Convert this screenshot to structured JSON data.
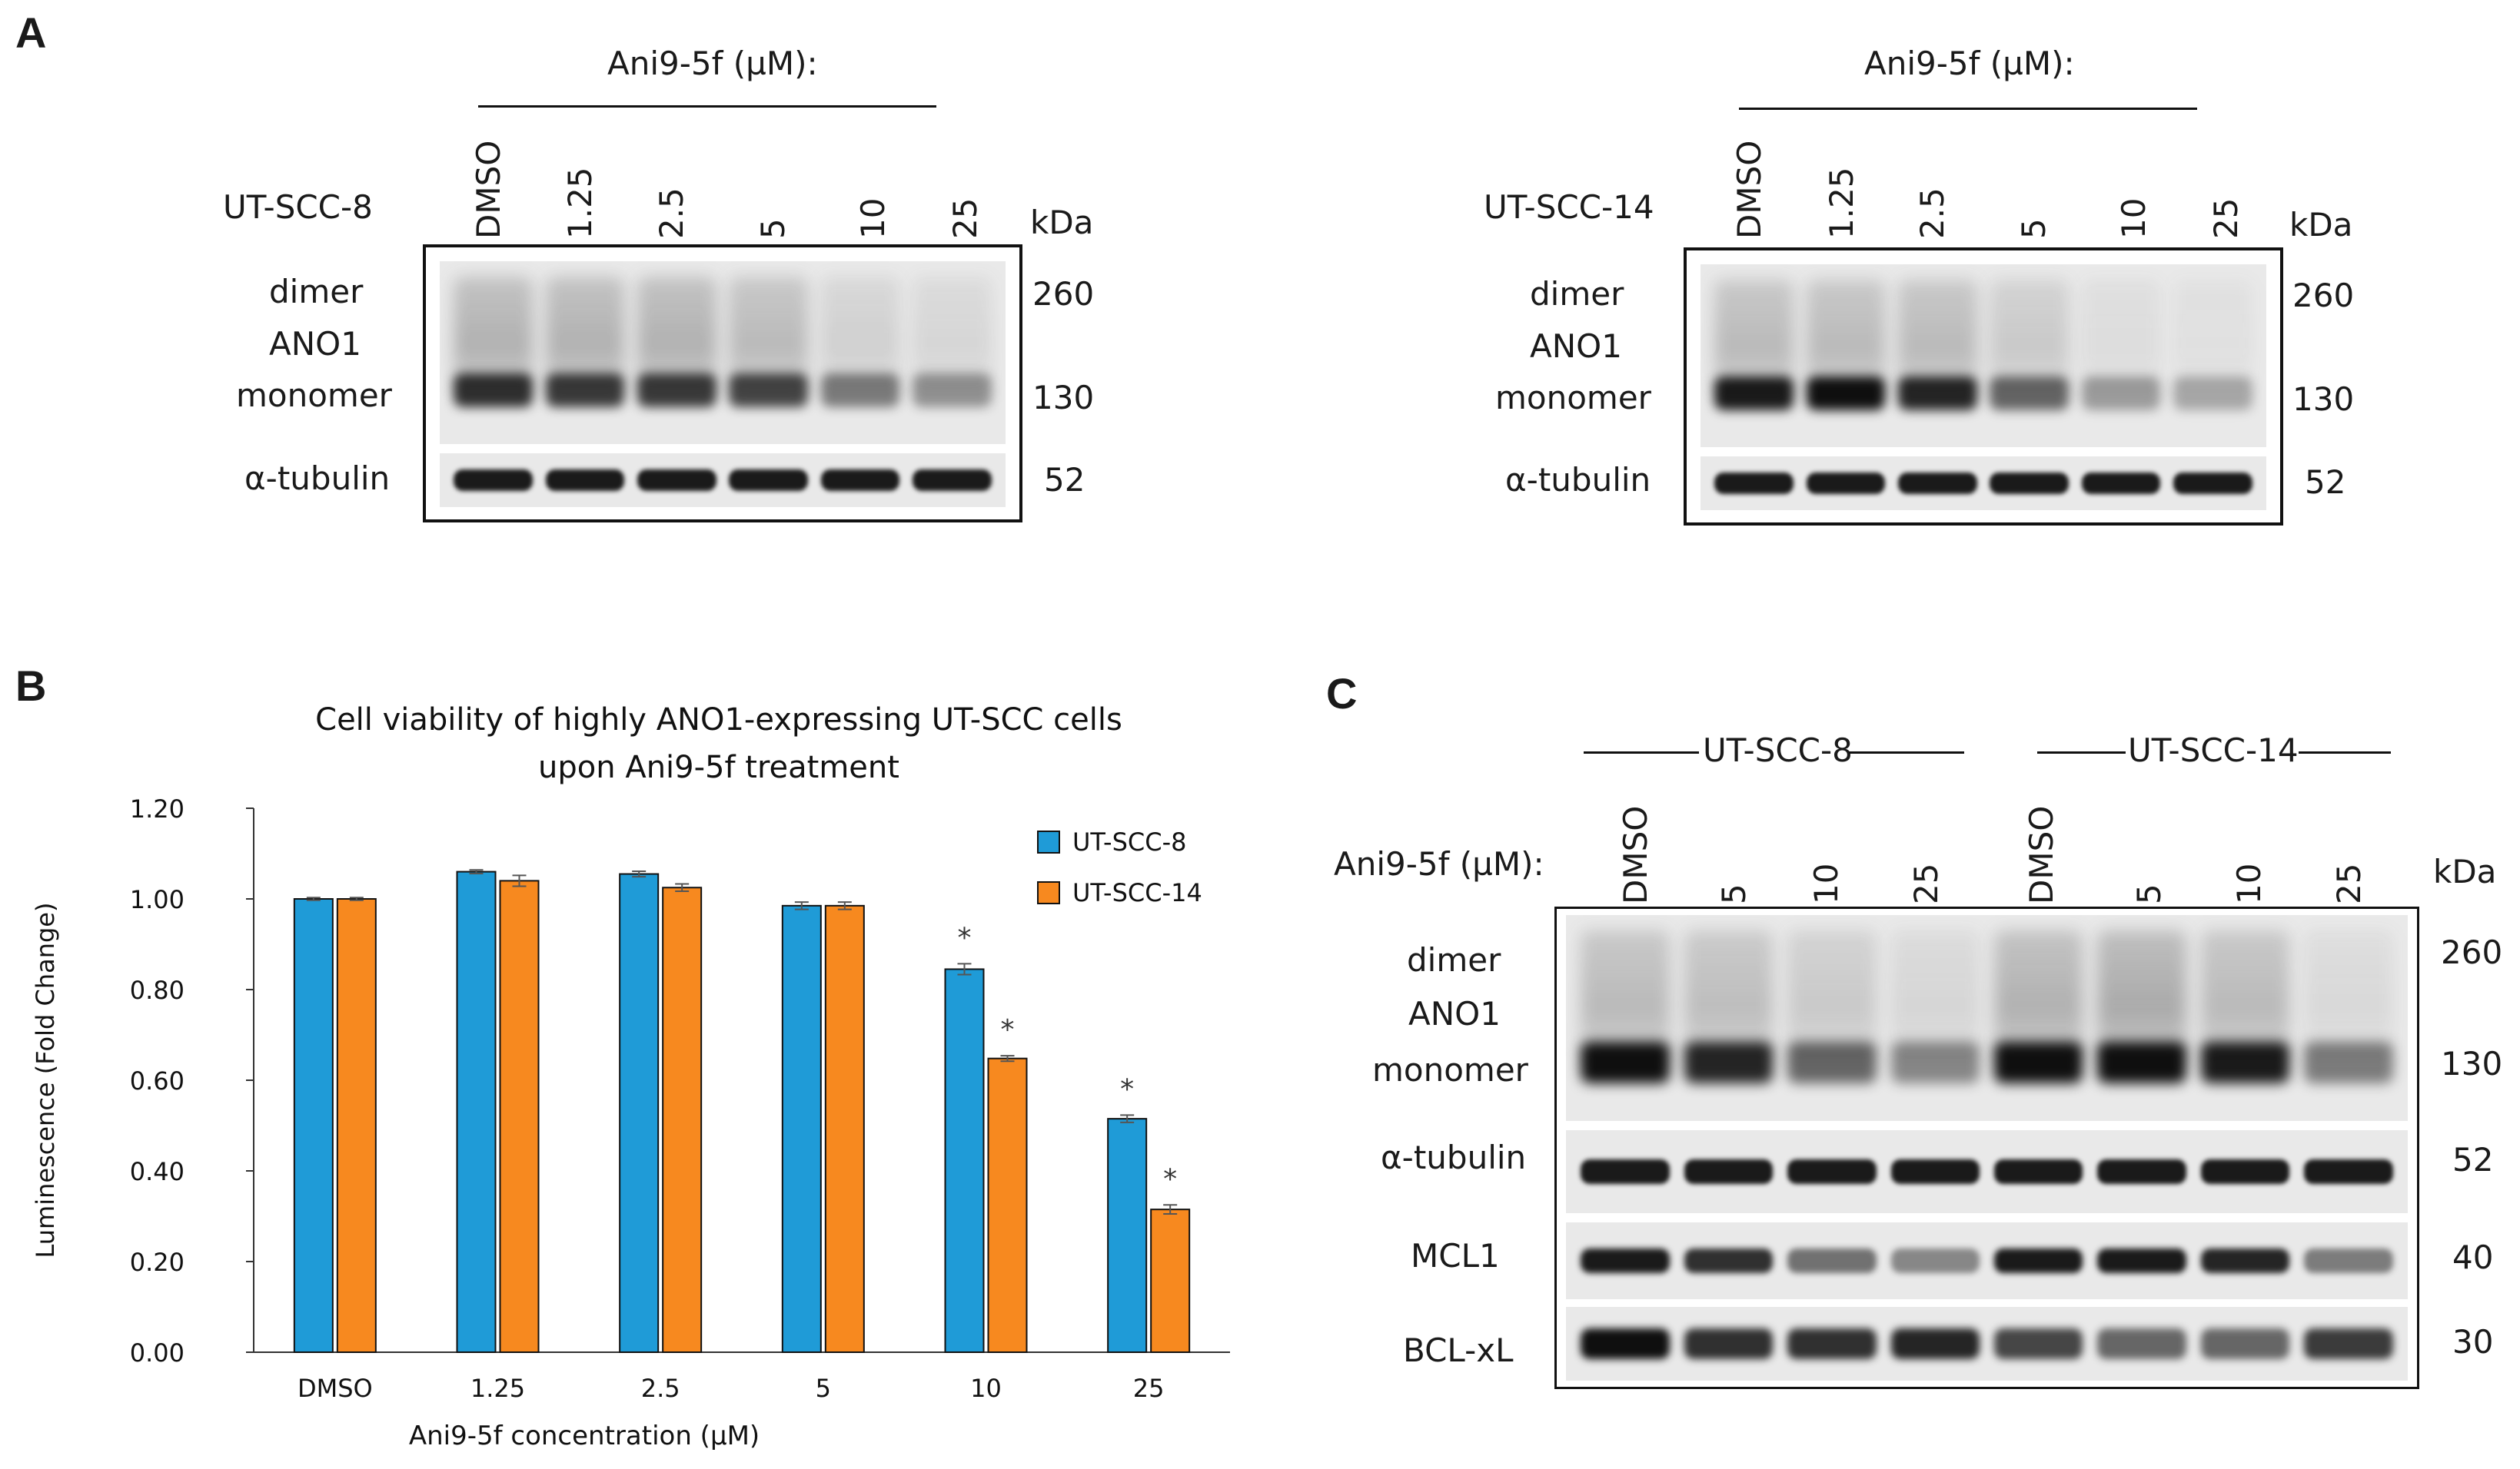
{
  "panelA": {
    "letter": "A",
    "blot1": {
      "treatment_label": "Ani9-5f (µM):",
      "cell_line": "UT-SCC-8",
      "lanes": [
        "DMSO",
        "1.25",
        "2.5",
        "5",
        "10",
        "25"
      ],
      "kda": "kDa",
      "rows": [
        "dimer",
        "ANO1",
        "monomer",
        "α-tubulin"
      ],
      "markers": [
        "260",
        "130",
        "52"
      ],
      "ano1_monomer_intensity": [
        0.85,
        0.8,
        0.8,
        0.75,
        0.5,
        0.4
      ],
      "ano1_dimer_intensity": [
        0.35,
        0.35,
        0.35,
        0.3,
        0.15,
        0.12
      ],
      "tubulin_intensity": [
        0.95,
        0.95,
        0.95,
        0.95,
        0.95,
        0.95
      ]
    },
    "blot2": {
      "treatment_label": "Ani9-5f (µM):",
      "cell_line": "UT-SCC-14",
      "lanes": [
        "DMSO",
        "1.25",
        "2.5",
        "5",
        "10",
        "25"
      ],
      "kda": "kDa",
      "rows": [
        "dimer",
        "ANO1",
        "monomer",
        "α-tubulin"
      ],
      "markers": [
        "260",
        "130",
        "52"
      ],
      "ano1_monomer_intensity": [
        0.95,
        1.0,
        0.9,
        0.6,
        0.35,
        0.3
      ],
      "ano1_dimer_intensity": [
        0.3,
        0.3,
        0.3,
        0.2,
        0.08,
        0.06
      ],
      "tubulin_intensity": [
        0.95,
        0.95,
        0.95,
        0.95,
        0.95,
        0.95
      ]
    }
  },
  "panelB": {
    "letter": "B",
    "chart_data": {
      "type": "bar",
      "title": "Cell viability of highly ANO1-expressing UT-SCC cells upon Ani9-5f treatment",
      "title_lines": [
        "Cell viability of highly ANO1-expressing UT-SCC cells",
        "upon Ani9-5f treatment"
      ],
      "xlabel": "Ani9-5f concentration (µM)",
      "ylabel": "Luminescence (Fold Change)",
      "categories": [
        "DMSO",
        "1.25",
        "2.5",
        "5",
        "10",
        "25"
      ],
      "yticks": [
        "0.00",
        "0.20",
        "0.40",
        "0.60",
        "0.80",
        "1.00",
        "1.20"
      ],
      "ylim": [
        0,
        1.2
      ],
      "legend_position": "top-right",
      "series": [
        {
          "name": "UT-SCC-8",
          "color": "#1f9bd7",
          "values": [
            1.0,
            1.06,
            1.055,
            0.985,
            0.845,
            0.515
          ],
          "errors": [
            0.003,
            0.004,
            0.006,
            0.008,
            0.012,
            0.008
          ]
        },
        {
          "name": "UT-SCC-14",
          "color": "#f7891f",
          "values": [
            1.0,
            1.04,
            1.025,
            0.985,
            0.648,
            0.315
          ],
          "errors": [
            0.003,
            0.012,
            0.008,
            0.008,
            0.006,
            0.01
          ]
        }
      ],
      "significance": [
        {
          "category": "10",
          "series": "UT-SCC-8",
          "label": "*"
        },
        {
          "category": "10",
          "series": "UT-SCC-14",
          "label": "*"
        },
        {
          "category": "25",
          "series": "UT-SCC-8",
          "label": "*"
        },
        {
          "category": "25",
          "series": "UT-SCC-14",
          "label": "*"
        }
      ]
    }
  },
  "panelC": {
    "letter": "C",
    "groups": [
      "UT-SCC-8",
      "UT-SCC-14"
    ],
    "treatment_label": "Ani9-5f (µM):",
    "lanes": [
      "DMSO",
      "5",
      "10",
      "25",
      "DMSO",
      "5",
      "10",
      "25"
    ],
    "kda": "kDa",
    "rows": [
      "dimer",
      "ANO1",
      "monomer",
      "α-tubulin",
      "MCL1",
      "BCL-xL"
    ],
    "markers": [
      "260",
      "130",
      "52",
      "40",
      "30"
    ],
    "ano1_monomer_intensity": [
      1.0,
      0.9,
      0.6,
      0.45,
      1.0,
      1.0,
      0.95,
      0.5
    ],
    "ano1_dimer_intensity": [
      0.3,
      0.28,
      0.2,
      0.12,
      0.35,
      0.4,
      0.3,
      0.1
    ],
    "tubulin_intensity": [
      0.95,
      0.95,
      0.95,
      0.95,
      0.95,
      0.95,
      0.95,
      0.95
    ],
    "mcl1_intensity": [
      0.95,
      0.85,
      0.55,
      0.45,
      0.95,
      0.95,
      0.9,
      0.5
    ],
    "bclxl_intensity": [
      1.0,
      0.85,
      0.85,
      0.9,
      0.75,
      0.6,
      0.6,
      0.8
    ]
  }
}
